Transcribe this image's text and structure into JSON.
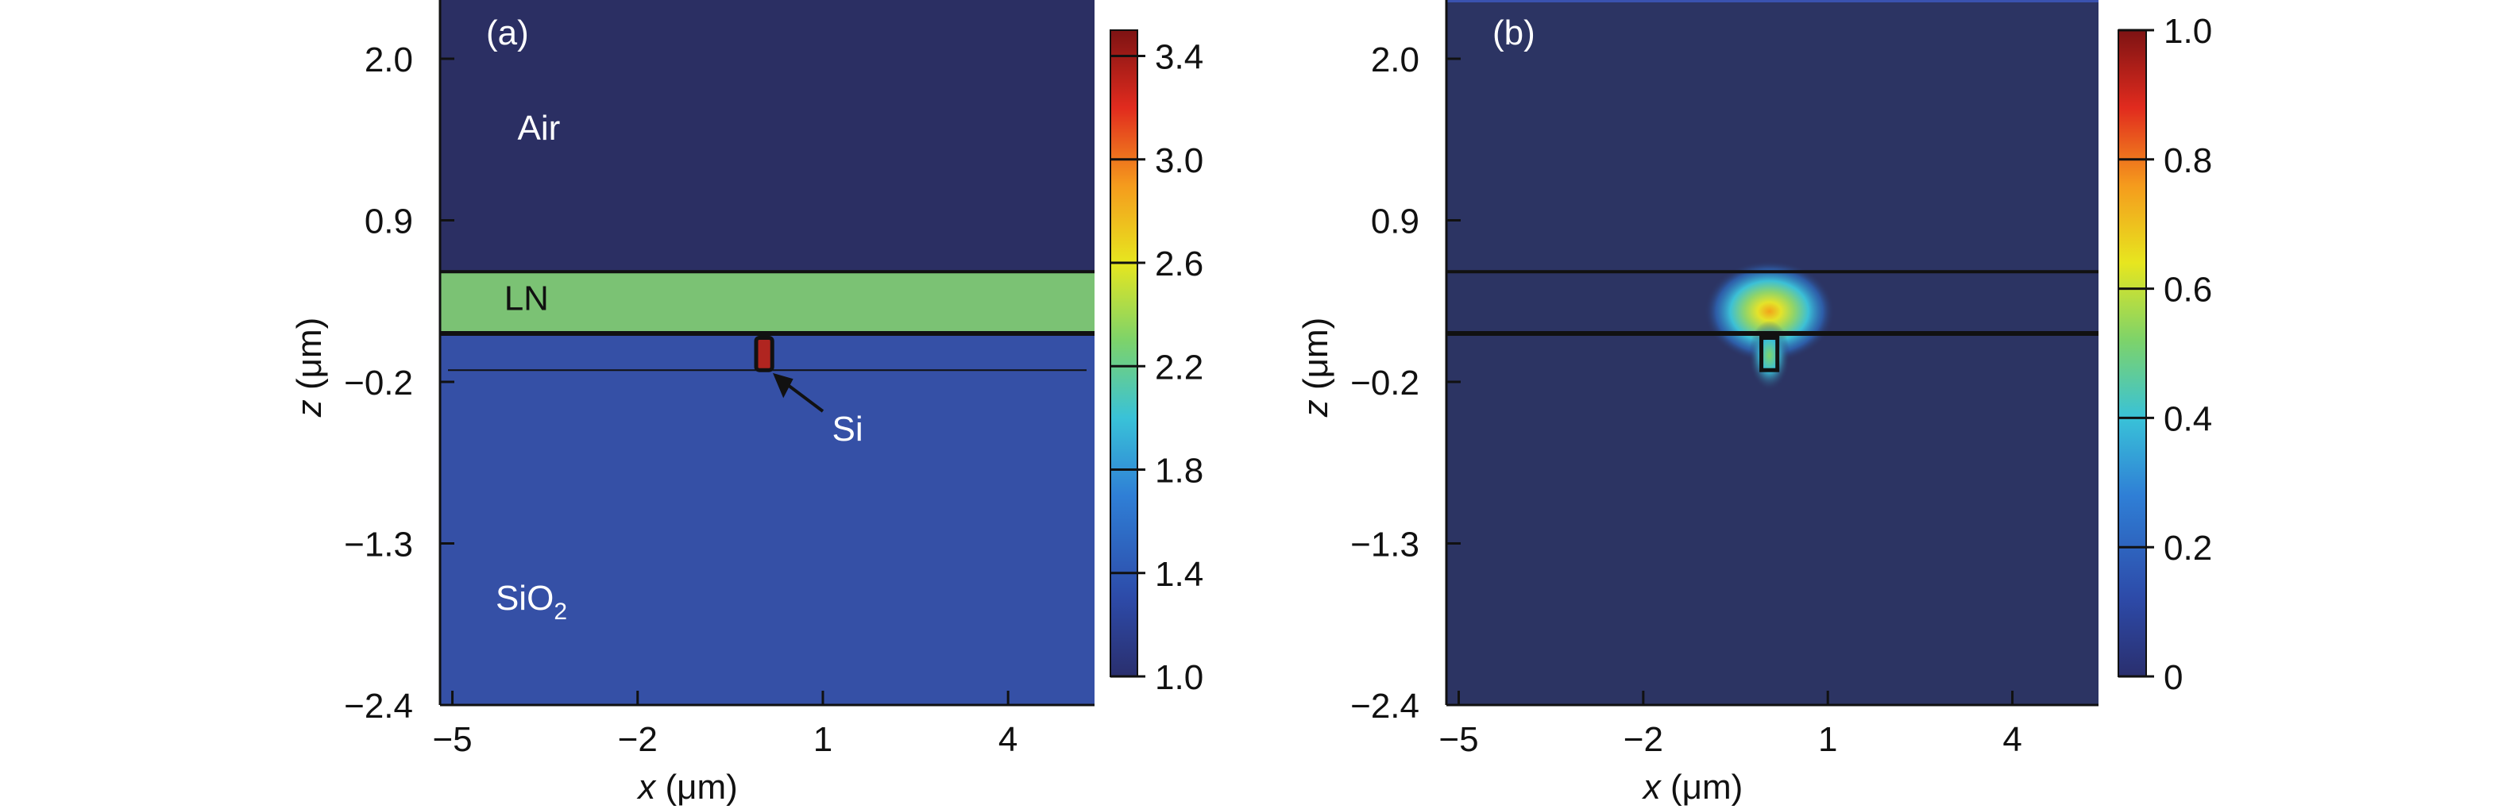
{
  "chart_data": [
    {
      "type": "heatmap",
      "panel_label": "(a)",
      "xlabel": "x (μm)",
      "ylabel": "z (μm)",
      "xlim": [
        -5.2,
        5.4
      ],
      "ylim": [
        -2.4,
        2.4
      ],
      "xticks": [
        -5,
        -2,
        1,
        4
      ],
      "xtick_labels": [
        "−5",
        "−2",
        "1",
        "4"
      ],
      "yticks": [
        2.0,
        0.9,
        -0.2,
        -1.3,
        -2.4
      ],
      "ytick_labels": [
        "2.0",
        "0.9",
        "−0.2",
        "−1.3",
        "−2.4"
      ],
      "regions": [
        {
          "name": "Air",
          "label": "Air",
          "z_range": [
            0.55,
            2.4
          ],
          "value": 1.0
        },
        {
          "name": "LN",
          "label": "LN",
          "z_range": [
            0.13,
            0.55
          ],
          "value": 2.2
        },
        {
          "name": "SiO2",
          "label": "SiO",
          "label_sub": "2",
          "z_range": [
            -2.4,
            0.13
          ],
          "value": 1.45
        }
      ],
      "waveguide": {
        "name": "Si",
        "label": "Si",
        "x_range": [
          -0.08,
          0.18
        ],
        "z_range": [
          -0.12,
          0.1
        ],
        "value": 3.45
      },
      "colorbar": {
        "min": 1.0,
        "max": 3.5,
        "ticks": [
          1.0,
          1.4,
          1.8,
          2.2,
          2.6,
          3.0,
          3.4
        ],
        "tick_labels": [
          "1.0",
          "1.4",
          "1.8",
          "2.2",
          "2.6",
          "3.0",
          "3.4"
        ]
      }
    },
    {
      "type": "heatmap",
      "panel_label": "(b)",
      "xlabel": "x (μm)",
      "ylabel": "z (μm)",
      "xlim": [
        -5.2,
        5.4
      ],
      "ylim": [
        -2.4,
        2.4
      ],
      "xticks": [
        -5,
        -2,
        1,
        4
      ],
      "xtick_labels": [
        "−5",
        "−2",
        "1",
        "4"
      ],
      "yticks": [
        2.0,
        0.9,
        -0.2,
        -1.3,
        -2.4
      ],
      "ytick_labels": [
        "2.0",
        "0.9",
        "−0.2",
        "−1.3",
        "−2.4"
      ],
      "mode_peak": {
        "x": 0.05,
        "z": 0.28,
        "value": 0.65
      },
      "colorbar": {
        "min": 0,
        "max": 1.0,
        "ticks": [
          0,
          0.2,
          0.4,
          0.6,
          0.8,
          1.0
        ],
        "tick_labels": [
          "0",
          "0.2",
          "0.4",
          "0.6",
          "0.8",
          "1.0"
        ]
      }
    }
  ]
}
